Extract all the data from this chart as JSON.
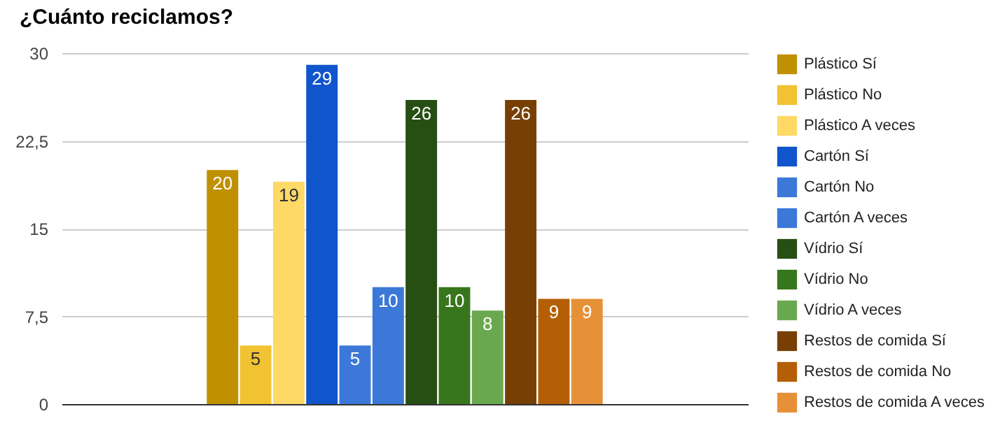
{
  "chart_data": {
    "type": "bar",
    "title": "¿Cuánto reciclamos?",
    "categories": [
      null
    ],
    "series": [
      {
        "name": "Plástico Sí",
        "color": "#bf9000",
        "values": [
          20
        ]
      },
      {
        "name": "Plástico No",
        "color": "#f1c232",
        "values": [
          5
        ]
      },
      {
        "name": "Plástico A veces",
        "color": "#ffd966",
        "values": [
          19
        ]
      },
      {
        "name": "Cartón Sí",
        "color": "#1155cc",
        "values": [
          29
        ]
      },
      {
        "name": "Cartón No",
        "color": "#3c78d8",
        "values": [
          5
        ]
      },
      {
        "name": "Cartón A veces",
        "color": "#3c78d8",
        "values": [
          10
        ]
      },
      {
        "name": "Vídrio Sí",
        "color": "#274e13",
        "values": [
          26
        ]
      },
      {
        "name": "Vídrio No",
        "color": "#38761d",
        "values": [
          10
        ]
      },
      {
        "name": "Vídrio A veces",
        "color": "#6aa84f",
        "values": [
          8
        ]
      },
      {
        "name": "Restos de comida Sí",
        "color": "#783f04",
        "values": [
          26
        ]
      },
      {
        "name": "Restos de comida No",
        "color": "#b45f06",
        "values": [
          9
        ]
      },
      {
        "name": "Restos de comida A veces",
        "color": "#e69138",
        "values": [
          9
        ]
      }
    ],
    "ylim": [
      0,
      30
    ],
    "yticks": [
      0,
      {
        "value": 7.5,
        "label": "7,5"
      },
      15,
      {
        "value": 22.5,
        "label": "22,5"
      },
      30
    ],
    "grid": "y",
    "legend": "right",
    "data_labels": true
  }
}
